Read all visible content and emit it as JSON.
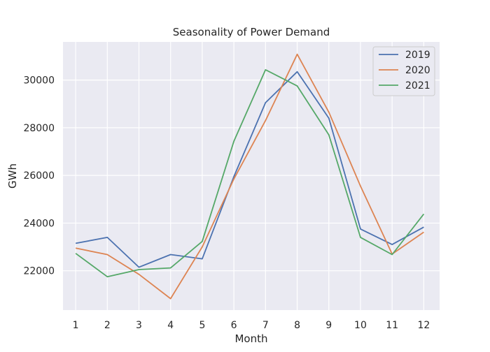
{
  "chart_data": {
    "type": "line",
    "title": "Seasonality of Power Demand",
    "xlabel": "Month",
    "ylabel": "GWh",
    "x": [
      1,
      2,
      3,
      4,
      5,
      6,
      7,
      8,
      9,
      10,
      11,
      12
    ],
    "xlim": [
      0.6,
      12.5
    ],
    "ylim": [
      20350,
      31600
    ],
    "yticks": [
      22000,
      24000,
      26000,
      28000,
      30000
    ],
    "grid": true,
    "legend_position": "top-right",
    "series": [
      {
        "name": "2019",
        "color": "#4c72b0",
        "values": [
          23150,
          23400,
          22150,
          22680,
          22500,
          25950,
          29050,
          30350,
          28400,
          23750,
          23100,
          23830
        ]
      },
      {
        "name": "2020",
        "color": "#dd8452",
        "values": [
          22950,
          22680,
          21850,
          20830,
          23000,
          25850,
          28300,
          31080,
          28650,
          25550,
          22700,
          23620
        ]
      },
      {
        "name": "2021",
        "color": "#55a868",
        "values": [
          22730,
          21750,
          22050,
          22120,
          23230,
          27430,
          30430,
          29750,
          27700,
          23400,
          22680,
          24380
        ]
      }
    ]
  }
}
